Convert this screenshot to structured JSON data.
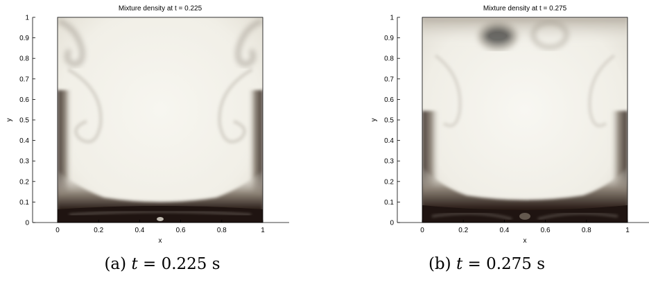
{
  "figure": {
    "panels": [
      {
        "title": "Mixture density at t = 0.225",
        "caption_label": "(a)",
        "caption_var": "t",
        "caption_value": "= 0.225 s",
        "x_label": "x",
        "y_label": "y",
        "x_ticks": [
          "0",
          "0.2",
          "0.4",
          "0.6",
          "0.8",
          "1"
        ],
        "y_ticks": [
          "0",
          "0.1",
          "0.2",
          "0.3",
          "0.4",
          "0.5",
          "0.6",
          "0.7",
          "0.8",
          "0.9",
          "1"
        ],
        "colors": {
          "light": "#f6f5ef",
          "dark": "#1f1411",
          "mid": "#9a9388"
        }
      },
      {
        "title": "Mixture density at t = 0.275",
        "caption_label": "(b)",
        "caption_var": "t",
        "caption_value": "= 0.275 s",
        "x_label": "x",
        "y_label": "y",
        "x_ticks": [
          "0",
          "0.2",
          "0.4",
          "0.6",
          "0.8",
          "1"
        ],
        "y_ticks": [
          "0",
          "0.1",
          "0.2",
          "0.3",
          "0.4",
          "0.5",
          "0.6",
          "0.7",
          "0.8",
          "0.9",
          "1"
        ],
        "colors": {
          "light": "#f6f5ef",
          "dark": "#1f1411",
          "mid": "#9a9388"
        }
      }
    ]
  }
}
